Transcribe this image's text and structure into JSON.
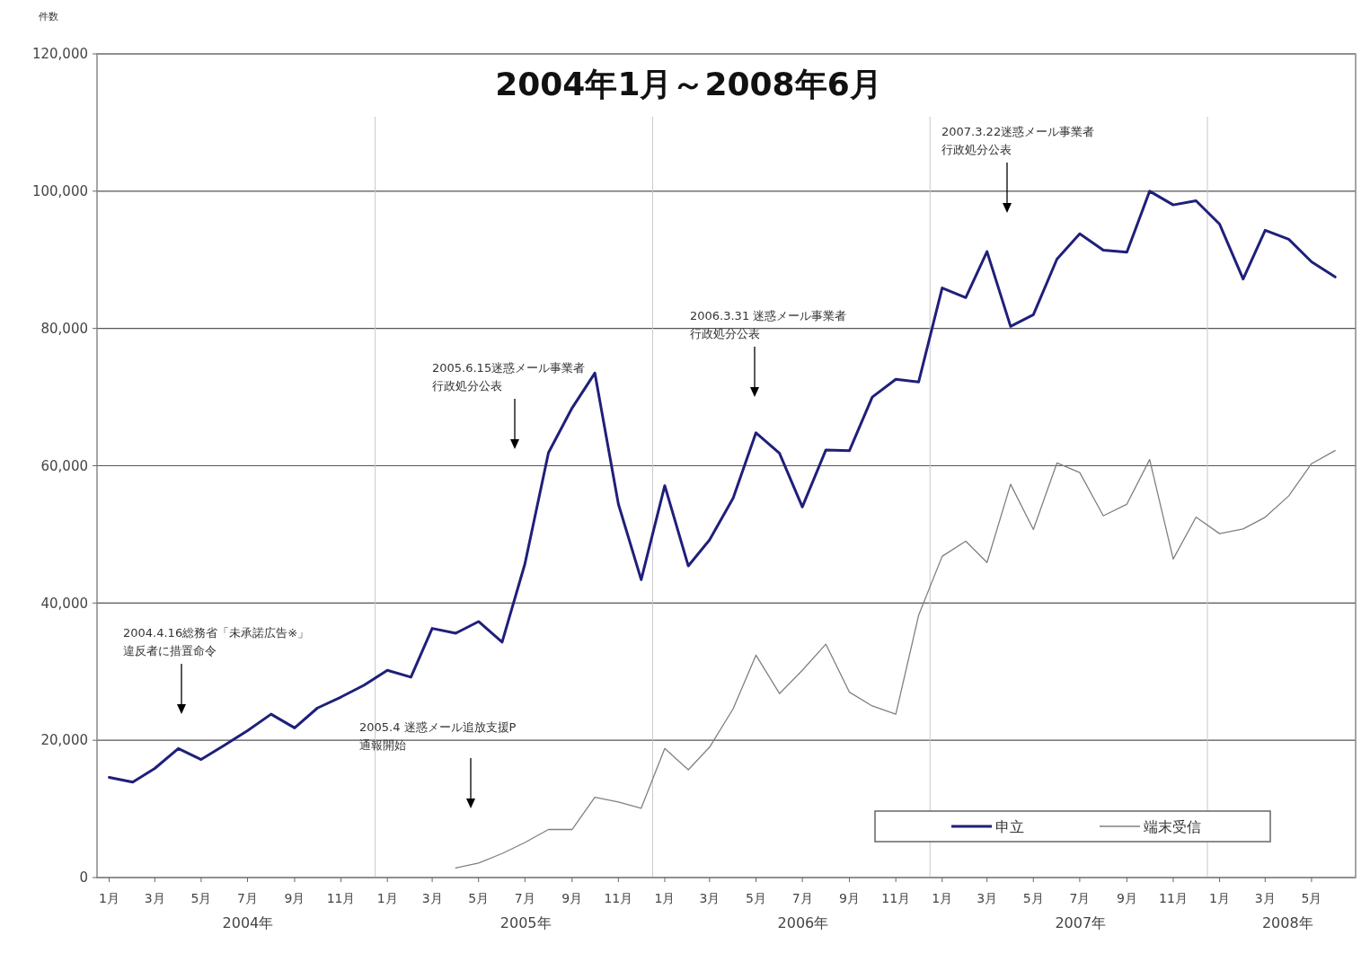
{
  "chart_data": {
    "type": "line",
    "title": "2004年1月～2008年6月",
    "ylabel": "件数",
    "x": [
      "2004-01",
      "2004-02",
      "2004-03",
      "2004-04",
      "2004-05",
      "2004-06",
      "2004-07",
      "2004-08",
      "2004-09",
      "2004-10",
      "2004-11",
      "2004-12",
      "2005-01",
      "2005-02",
      "2005-03",
      "2005-04",
      "2005-05",
      "2005-06",
      "2005-07",
      "2005-08",
      "2005-09",
      "2005-10",
      "2005-11",
      "2005-12",
      "2006-01",
      "2006-02",
      "2006-03",
      "2006-04",
      "2006-05",
      "2006-06",
      "2006-07",
      "2006-08",
      "2006-09",
      "2006-10",
      "2006-11",
      "2006-12",
      "2007-01",
      "2007-02",
      "2007-03",
      "2007-04",
      "2007-05",
      "2007-06",
      "2007-07",
      "2007-08",
      "2007-09",
      "2007-10",
      "2007-11",
      "2007-12",
      "2008-01",
      "2008-02",
      "2008-03",
      "2008-04",
      "2008-05",
      "2008-06"
    ],
    "series": [
      {
        "name": "申立",
        "color": "#1f1f7a",
        "values": [
          14600,
          13900,
          15900,
          18800,
          17200,
          19300,
          21400,
          23800,
          21800,
          24700,
          26300,
          28000,
          30200,
          29200,
          36300,
          35600,
          37300,
          34300,
          45700,
          61900,
          68400,
          73500,
          54400,
          43400,
          57100,
          45400,
          49200,
          55300,
          64800,
          61800,
          54000,
          62300,
          62200,
          70000,
          72600,
          72200,
          85900,
          84500,
          91200,
          80300,
          82000,
          90100,
          93800,
          91400,
          91100,
          100000,
          98000,
          98600,
          95200,
          87200,
          94300,
          93000,
          89700,
          87500
        ]
      },
      {
        "name": "端末受信",
        "color": "#808080",
        "values": [
          null,
          null,
          null,
          null,
          null,
          null,
          null,
          null,
          null,
          null,
          null,
          null,
          null,
          null,
          null,
          1400,
          2100,
          3500,
          5100,
          7000,
          7000,
          11700,
          11000,
          10100,
          18800,
          15700,
          19000,
          24600,
          32400,
          26800,
          30200,
          34000,
          27000,
          25000,
          23800,
          38200,
          46800,
          49000,
          45900,
          57300,
          50700,
          60400,
          59000,
          52700,
          54400,
          60900,
          46400,
          52500,
          50100,
          50800,
          52500,
          55600,
          60300,
          62200
        ]
      }
    ],
    "xlim": [
      "2003-12-16",
      "2008-06-28"
    ],
    "xticks": [
      {
        "value": "2004-01",
        "label": "1月"
      },
      {
        "value": "2004-03",
        "label": "3月"
      },
      {
        "value": "2004-05",
        "label": "5月"
      },
      {
        "value": "2004-07",
        "label": "7月"
      },
      {
        "value": "2004-09",
        "label": "9月"
      },
      {
        "value": "2004-11",
        "label": "11月"
      },
      {
        "value": "2005-01",
        "label": "1月"
      },
      {
        "value": "2005-03",
        "label": "3月"
      },
      {
        "value": "2005-05",
        "label": "5月"
      },
      {
        "value": "2005-07",
        "label": "7月"
      },
      {
        "value": "2005-09",
        "label": "9月"
      },
      {
        "value": "2005-11",
        "label": "11月"
      },
      {
        "value": "2006-01",
        "label": "1月"
      },
      {
        "value": "2006-03",
        "label": "3月"
      },
      {
        "value": "2006-05",
        "label": "5月"
      },
      {
        "value": "2006-07",
        "label": "7月"
      },
      {
        "value": "2006-09",
        "label": "9月"
      },
      {
        "value": "2006-11",
        "label": "11月"
      },
      {
        "value": "2007-01",
        "label": "1月"
      },
      {
        "value": "2007-03",
        "label": "3月"
      },
      {
        "value": "2007-05",
        "label": "5月"
      },
      {
        "value": "2007-07",
        "label": "7月"
      },
      {
        "value": "2007-09",
        "label": "9月"
      },
      {
        "value": "2007-11",
        "label": "11月"
      },
      {
        "value": "2008-01",
        "label": "1月"
      },
      {
        "value": "2008-03",
        "label": "3月"
      },
      {
        "value": "2008-05",
        "label": "5月"
      }
    ],
    "ylim": [
      0,
      120000
    ],
    "yticks": [
      0,
      {
        "value": 20000,
        "label": "20,000"
      },
      {
        "value": 40000,
        "label": "40,000"
      },
      {
        "value": 60000,
        "label": "60,000"
      },
      {
        "value": 80000,
        "label": "80,000"
      },
      {
        "value": 100000,
        "label": "100,000"
      },
      {
        "value": 120000,
        "label": "120,000"
      }
    ],
    "grid": "y",
    "legend": "bottom right",
    "ref_lines": [
      {
        "axis": "x",
        "value": "2004-12-16",
        "color": "#c8c8c8"
      },
      {
        "axis": "x",
        "value": "2005-12-16",
        "color": "#c8c8c8"
      },
      {
        "axis": "x",
        "value": "2006-12-16",
        "color": "#c8c8c8"
      },
      {
        "axis": "x",
        "value": "2007-12-16",
        "color": "#c8c8c8"
      }
    ],
    "annotations": [
      "2004年",
      "2005年",
      "2006年",
      "2007年",
      "2008年",
      "2004.4.16総務省「未承諾広告※」違反者に措置命令",
      "2005.4 迷惑メール追放支援P通報開始",
      "2005.6.15迷惑メール事業者行政処分公表",
      "2006.3.31 迷惑メール事業者行政処分公表",
      "2007.3.22迷惑メール事業者行政処分公表"
    ]
  }
}
